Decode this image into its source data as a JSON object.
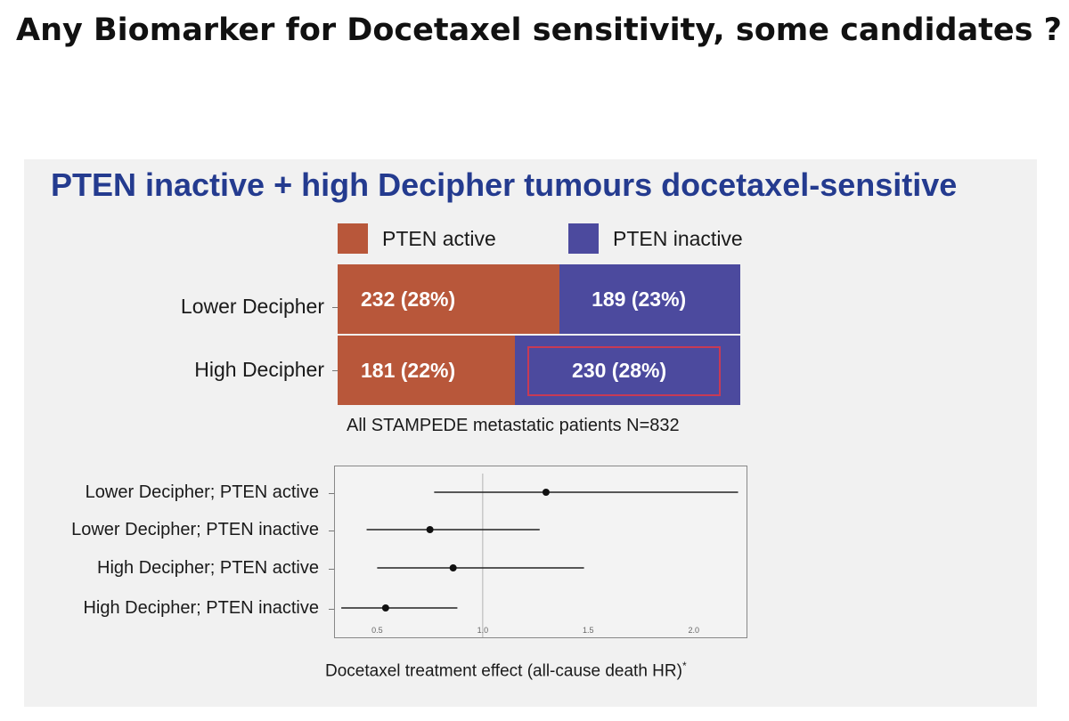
{
  "slide_title": "Any Biomarker for Docetaxel sensitivity, some candidates ?",
  "colors": {
    "pten_active": "#b8573a",
    "pten_inactive": "#4c4a9e",
    "title_blue": "#243b8f"
  },
  "chart_data": [
    {
      "type": "bar",
      "title": "PTEN inactive + high Decipher tumours docetaxel-sensitive",
      "stacked": true,
      "orientation": "horizontal",
      "categories": [
        "Lower Decipher",
        "High Decipher"
      ],
      "series": [
        {
          "name": "PTEN active",
          "values": [
            232,
            181
          ],
          "labels": [
            "232 (28%)",
            "181 (22%)"
          ]
        },
        {
          "name": "PTEN inactive",
          "values": [
            189,
            230
          ],
          "labels": [
            "189 (23%)",
            "230 (28%)"
          ]
        }
      ],
      "xlabel": "All STAMPEDE metastatic patients N=832",
      "legend": "top"
    },
    {
      "type": "scatter",
      "subtype": "forest",
      "categories": [
        "Lower Decipher; PTEN active",
        "Lower Decipher; PTEN inactive",
        "High Decipher; PTEN active",
        "High Decipher; PTEN inactive"
      ],
      "estimates": [
        1.3,
        0.75,
        0.86,
        0.54
      ],
      "ci_low": [
        0.77,
        0.45,
        0.5,
        0.33
      ],
      "ci_high": [
        2.21,
        1.27,
        1.48,
        0.88
      ],
      "reference_line": 1.0,
      "xticks": [
        "0.5",
        "1.0",
        "1.5",
        "2.0"
      ],
      "xlim": [
        0.3,
        2.25
      ],
      "xlabel": "Docetaxel treatment effect (all-cause death HR)",
      "xlabel_marker": "*"
    }
  ]
}
